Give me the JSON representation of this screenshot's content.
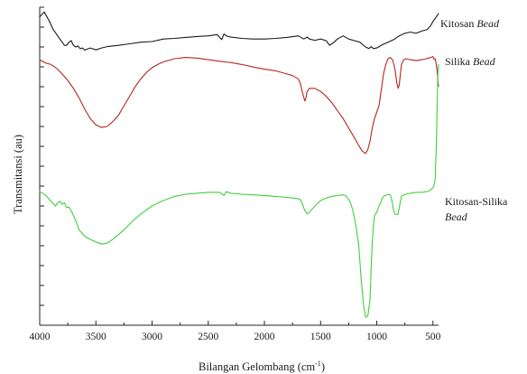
{
  "chart_data": {
    "type": "line",
    "xlabel": "Bilangan Gelombang (cm",
    "xlabel_sup": "-1",
    "xlabel_close": ")",
    "ylabel": "Transmitansi (au)",
    "xlim": [
      4000,
      450
    ],
    "x_reversed": true,
    "y_tick_labels_shown": false,
    "x_ticks": [
      4000,
      3500,
      3000,
      2500,
      2000,
      1500,
      1000,
      500
    ],
    "x_tick_labels": [
      "4000",
      "3500",
      "3000",
      "2500",
      "2000",
      "1500",
      "1000",
      "500"
    ],
    "ylim": [
      0,
      1
    ],
    "y_minor_ticks": 16,
    "series": [
      {
        "name": "Kitosan Bead",
        "label_plain": "Kitosan ",
        "label_italic": "Bead",
        "color": "#1a1a1a",
        "x": [
          4000,
          3960,
          3920,
          3880,
          3850,
          3820,
          3800,
          3780,
          3760,
          3740,
          3720,
          3700,
          3680,
          3660,
          3640,
          3620,
          3600,
          3580,
          3550,
          3500,
          3450,
          3400,
          3300,
          3200,
          3100,
          3000,
          2900,
          2800,
          2700,
          2600,
          2500,
          2420,
          2380,
          2360,
          2340,
          2300,
          2200,
          2100,
          2000,
          1900,
          1800,
          1700,
          1650,
          1620,
          1600,
          1550,
          1500,
          1450,
          1420,
          1400,
          1380,
          1350,
          1300,
          1250,
          1200,
          1150,
          1100,
          1070,
          1050,
          1030,
          1000,
          950,
          900,
          850,
          800,
          750,
          700,
          650,
          600,
          550,
          520,
          500,
          480,
          460,
          450
        ],
        "y": [
          0.97,
          0.985,
          0.96,
          0.93,
          0.915,
          0.9,
          0.89,
          0.88,
          0.88,
          0.89,
          0.895,
          0.88,
          0.875,
          0.878,
          0.87,
          0.872,
          0.865,
          0.868,
          0.872,
          0.866,
          0.872,
          0.876,
          0.88,
          0.885,
          0.89,
          0.892,
          0.9,
          0.902,
          0.905,
          0.908,
          0.91,
          0.914,
          0.898,
          0.916,
          0.91,
          0.906,
          0.902,
          0.9,
          0.9,
          0.902,
          0.905,
          0.91,
          0.9,
          0.906,
          0.9,
          0.896,
          0.9,
          0.895,
          0.88,
          0.885,
          0.89,
          0.9,
          0.91,
          0.9,
          0.895,
          0.89,
          0.875,
          0.87,
          0.876,
          0.87,
          0.872,
          0.882,
          0.89,
          0.898,
          0.91,
          0.918,
          0.922,
          0.918,
          0.925,
          0.93,
          0.942,
          0.955,
          0.965,
          0.975,
          0.98
        ]
      },
      {
        "name": "Silika Bead",
        "label_plain": "Silika ",
        "label_italic": "Bead",
        "color": "#b5261e",
        "x": [
          4000,
          3950,
          3900,
          3850,
          3800,
          3750,
          3700,
          3650,
          3600,
          3550,
          3500,
          3450,
          3400,
          3350,
          3300,
          3250,
          3200,
          3150,
          3100,
          3050,
          3000,
          2950,
          2900,
          2800,
          2700,
          2600,
          2500,
          2400,
          2300,
          2200,
          2100,
          2000,
          1900,
          1800,
          1750,
          1700,
          1680,
          1660,
          1640,
          1630,
          1620,
          1600,
          1550,
          1500,
          1450,
          1400,
          1350,
          1300,
          1250,
          1200,
          1160,
          1130,
          1100,
          1080,
          1060,
          1040,
          1020,
          1000,
          980,
          960,
          940,
          920,
          900,
          880,
          860,
          840,
          820,
          810,
          800,
          790,
          780,
          760,
          740,
          700,
          650,
          600,
          560,
          540,
          520,
          500,
          490,
          480,
          470,
          460,
          455,
          450
        ],
        "y": [
          0.835,
          0.825,
          0.82,
          0.808,
          0.79,
          0.77,
          0.745,
          0.715,
          0.68,
          0.65,
          0.63,
          0.622,
          0.625,
          0.64,
          0.66,
          0.69,
          0.72,
          0.75,
          0.775,
          0.795,
          0.81,
          0.82,
          0.828,
          0.838,
          0.842,
          0.84,
          0.835,
          0.83,
          0.826,
          0.82,
          0.812,
          0.805,
          0.8,
          0.79,
          0.785,
          0.775,
          0.76,
          0.73,
          0.705,
          0.715,
          0.735,
          0.745,
          0.745,
          0.735,
          0.72,
          0.7,
          0.675,
          0.65,
          0.62,
          0.59,
          0.565,
          0.548,
          0.54,
          0.552,
          0.58,
          0.62,
          0.65,
          0.67,
          0.69,
          0.74,
          0.79,
          0.82,
          0.838,
          0.842,
          0.835,
          0.81,
          0.76,
          0.745,
          0.755,
          0.79,
          0.82,
          0.835,
          0.838,
          0.835,
          0.832,
          0.835,
          0.838,
          0.84,
          0.842,
          0.845,
          0.836,
          0.838,
          0.82,
          0.79,
          0.76,
          0.752
        ]
      },
      {
        "name": "Kitosan-Silika Bead",
        "label_plain": "Kitosan-Silika",
        "label_italic": "Bead",
        "color": "#3fcf3f",
        "x": [
          4000,
          3950,
          3900,
          3860,
          3840,
          3820,
          3800,
          3780,
          3760,
          3740,
          3720,
          3700,
          3680,
          3650,
          3600,
          3550,
          3500,
          3450,
          3400,
          3350,
          3300,
          3250,
          3200,
          3150,
          3100,
          3050,
          3000,
          2900,
          2800,
          2700,
          2600,
          2500,
          2400,
          2360,
          2340,
          2300,
          2200,
          2100,
          2000,
          1900,
          1800,
          1750,
          1700,
          1680,
          1660,
          1640,
          1620,
          1600,
          1550,
          1500,
          1450,
          1400,
          1350,
          1300,
          1280,
          1260,
          1240,
          1220,
          1200,
          1180,
          1160,
          1140,
          1120,
          1100,
          1080,
          1060,
          1050,
          1040,
          1030,
          1020,
          1000,
          980,
          960,
          950,
          940,
          920,
          900,
          880,
          870,
          860,
          850,
          840,
          820,
          810,
          800,
          790,
          780,
          760,
          740,
          700,
          650,
          600,
          560,
          540,
          520,
          510,
          500,
          490,
          480,
          470,
          460,
          455,
          450
        ],
        "y": [
          0.42,
          0.41,
          0.39,
          0.375,
          0.385,
          0.39,
          0.38,
          0.385,
          0.37,
          0.372,
          0.36,
          0.345,
          0.33,
          0.3,
          0.28,
          0.27,
          0.262,
          0.255,
          0.258,
          0.27,
          0.285,
          0.3,
          0.318,
          0.335,
          0.35,
          0.362,
          0.375,
          0.392,
          0.405,
          0.412,
          0.415,
          0.418,
          0.418,
          0.408,
          0.42,
          0.415,
          0.412,
          0.41,
          0.408,
          0.405,
          0.402,
          0.4,
          0.398,
          0.395,
          0.38,
          0.36,
          0.35,
          0.355,
          0.375,
          0.392,
          0.4,
          0.405,
          0.408,
          0.41,
          0.408,
          0.4,
          0.39,
          0.37,
          0.34,
          0.3,
          0.25,
          0.15,
          0.07,
          0.025,
          0.03,
          0.08,
          0.18,
          0.26,
          0.31,
          0.345,
          0.355,
          0.375,
          0.39,
          0.4,
          0.405,
          0.408,
          0.412,
          0.41,
          0.4,
          0.38,
          0.36,
          0.35,
          0.348,
          0.35,
          0.368,
          0.39,
          0.405,
          0.41,
          0.412,
          0.415,
          0.418,
          0.418,
          0.42,
          0.422,
          0.425,
          0.43,
          0.432,
          0.44,
          0.46,
          0.56,
          0.74,
          0.8,
          0.82
        ]
      }
    ]
  }
}
